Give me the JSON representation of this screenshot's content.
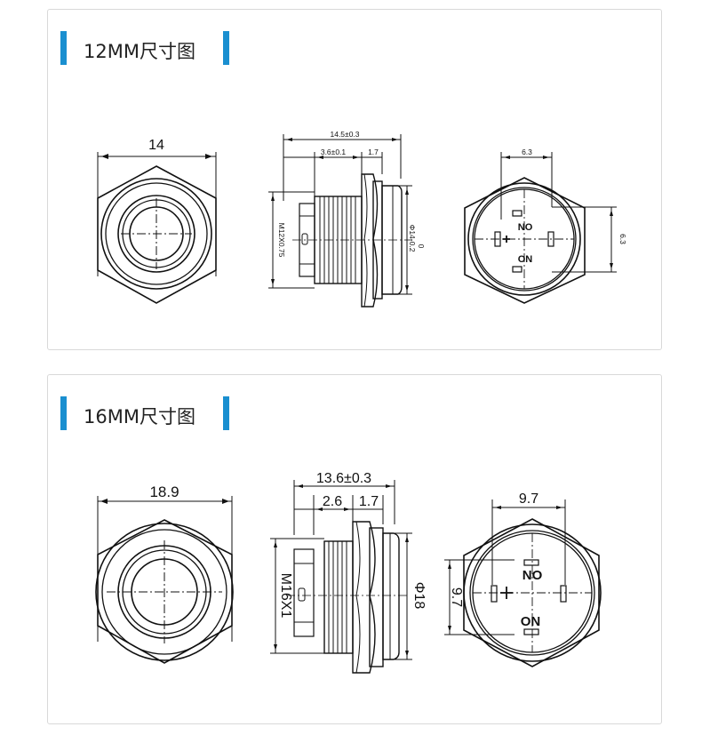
{
  "sections": [
    {
      "title": "12MM尺寸图",
      "front": {
        "width_label": "14"
      },
      "side": {
        "length_label": "14.5±0.3",
        "sub_label_1": "3.6±0.1",
        "sub_label_2": "1.7",
        "thread_label": "M12X0.75",
        "diameter_label": "Φ14-0.2",
        "tol_label": "0"
      },
      "back": {
        "width_label": "6.3",
        "height_label": "6.3",
        "no_label": "NO",
        "on_label": "ON"
      }
    },
    {
      "title": "16MM尺寸图",
      "front": {
        "width_label": "18.9"
      },
      "side": {
        "length_label": "13.6±0.3",
        "sub_label_1": "2.6",
        "sub_label_2": "1.7",
        "thread_label": "M16X1",
        "diameter_label": "Φ18"
      },
      "back": {
        "width_label": "9.7",
        "height_label": "9.7",
        "no_label": "NO",
        "on_label": "ON"
      }
    }
  ]
}
